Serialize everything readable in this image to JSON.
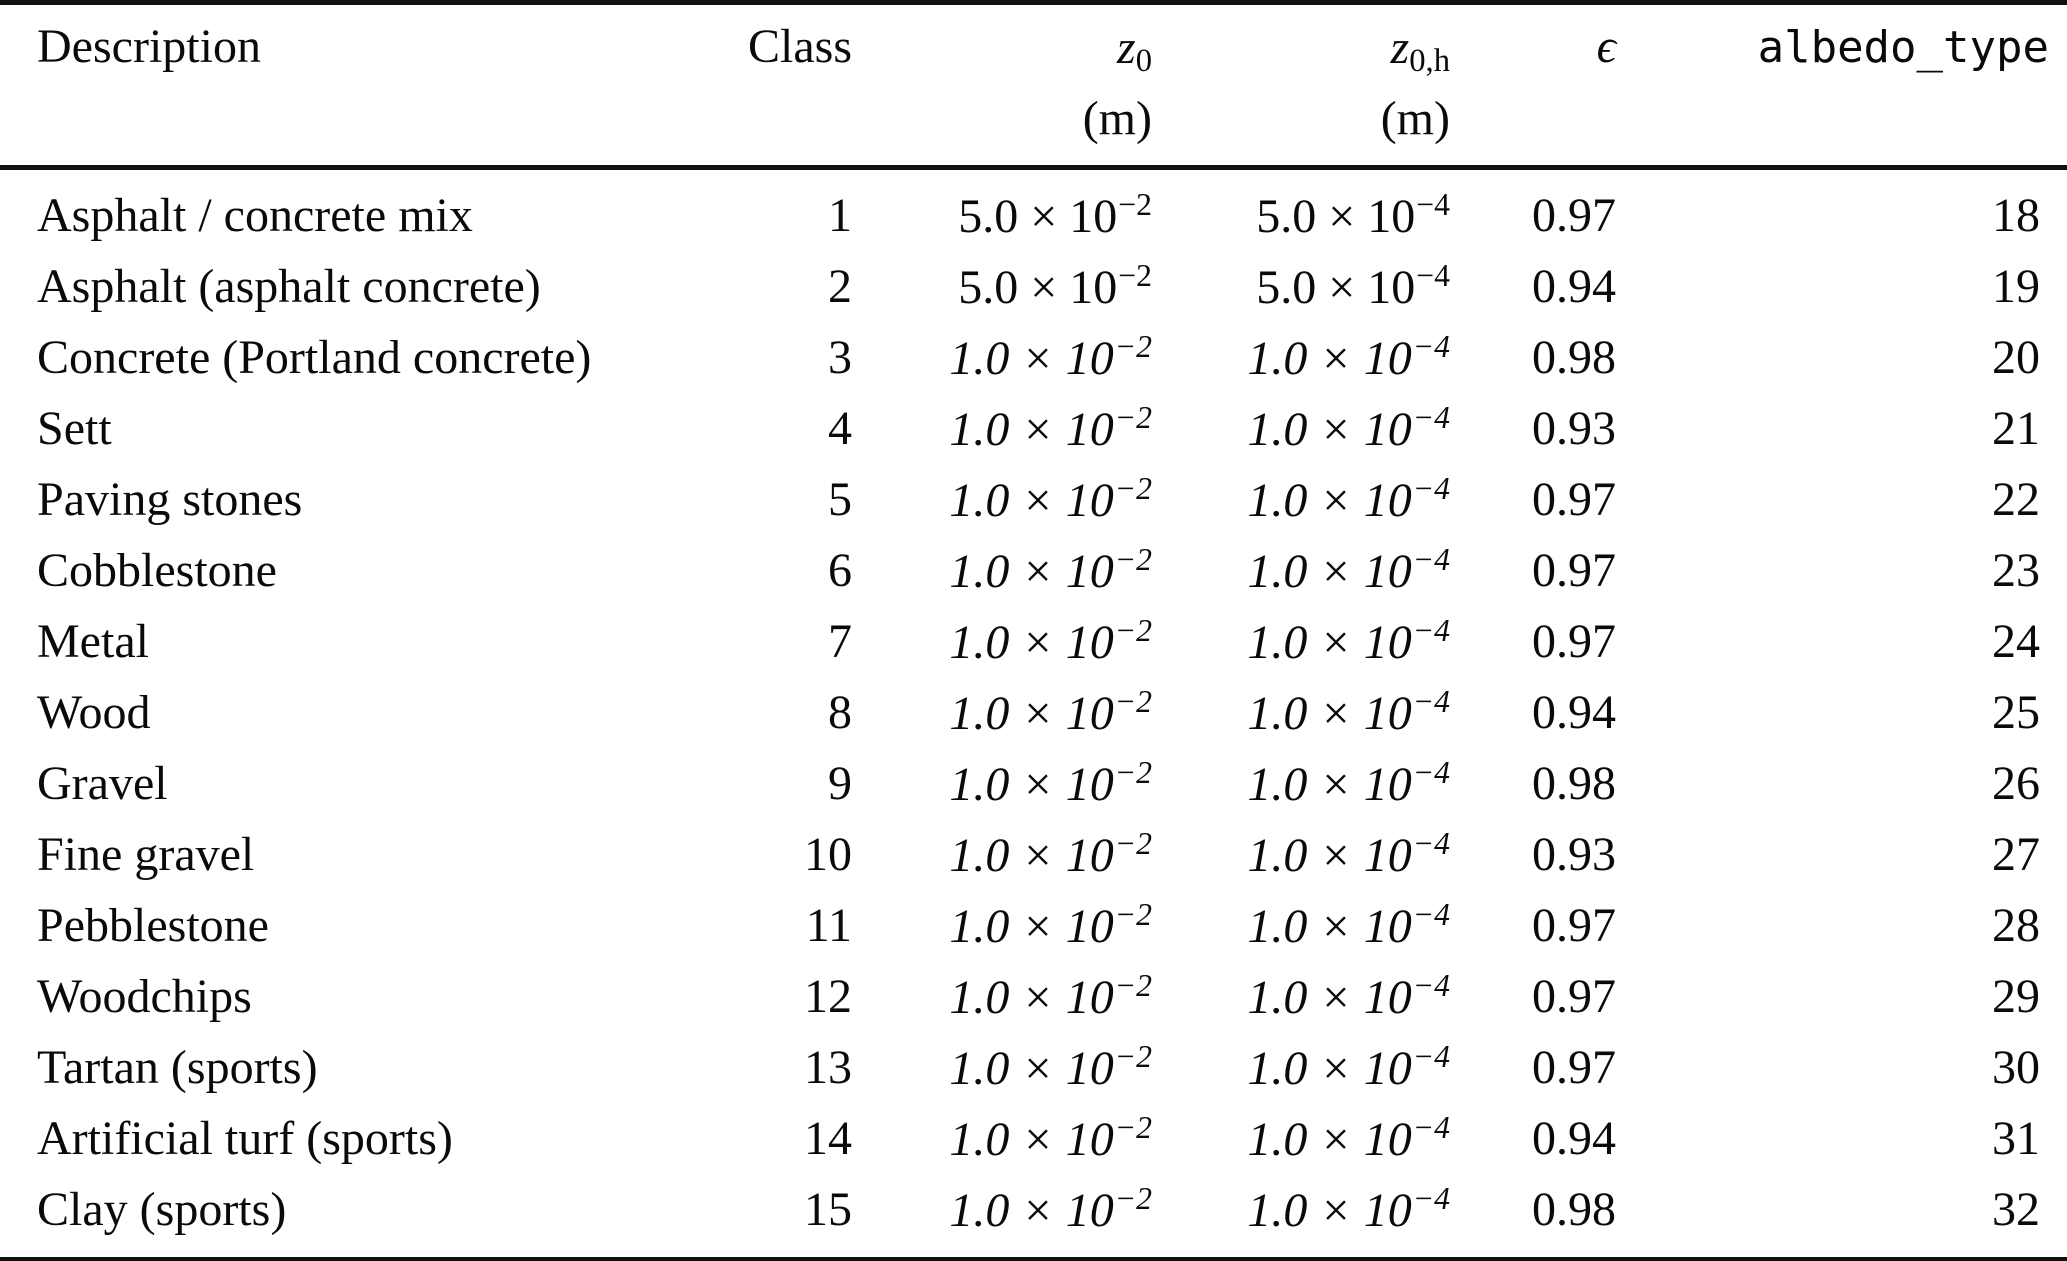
{
  "table": {
    "columns": [
      {
        "label": "Description"
      },
      {
        "label": "Class"
      },
      {
        "base": "z",
        "sub": "0",
        "unit": "(m)"
      },
      {
        "base": "z",
        "sub": "0,h",
        "unit": "(m)"
      },
      {
        "label": "ϵ"
      },
      {
        "label": "albedo_type"
      }
    ],
    "notation": {
      "times": "×",
      "power_base": "10"
    },
    "rows": [
      {
        "description": "Asphalt / concrete mix",
        "class": "1",
        "z0": {
          "m": "5.0",
          "e": "−2",
          "italic": false
        },
        "z0h": {
          "m": "5.0",
          "e": "−4",
          "italic": false
        },
        "eps": "0.97",
        "albedo": "18"
      },
      {
        "description": "Asphalt (asphalt concrete)",
        "class": "2",
        "z0": {
          "m": "5.0",
          "e": "−2",
          "italic": false
        },
        "z0h": {
          "m": "5.0",
          "e": "−4",
          "italic": false
        },
        "eps": "0.94",
        "albedo": "19"
      },
      {
        "description": "Concrete (Portland concrete)",
        "class": "3",
        "z0": {
          "m": "1.0",
          "e": "−2",
          "italic": true
        },
        "z0h": {
          "m": "1.0",
          "e": "−4",
          "italic": true
        },
        "eps": "0.98",
        "albedo": "20"
      },
      {
        "description": "Sett",
        "class": "4",
        "z0": {
          "m": "1.0",
          "e": "−2",
          "italic": true
        },
        "z0h": {
          "m": "1.0",
          "e": "−4",
          "italic": true
        },
        "eps": "0.93",
        "albedo": "21"
      },
      {
        "description": "Paving stones",
        "class": "5",
        "z0": {
          "m": "1.0",
          "e": "−2",
          "italic": true
        },
        "z0h": {
          "m": "1.0",
          "e": "−4",
          "italic": true
        },
        "eps": "0.97",
        "albedo": "22"
      },
      {
        "description": "Cobblestone",
        "class": "6",
        "z0": {
          "m": "1.0",
          "e": "−2",
          "italic": true
        },
        "z0h": {
          "m": "1.0",
          "e": "−4",
          "italic": true
        },
        "eps": "0.97",
        "albedo": "23"
      },
      {
        "description": "Metal",
        "class": "7",
        "z0": {
          "m": "1.0",
          "e": "−2",
          "italic": true
        },
        "z0h": {
          "m": "1.0",
          "e": "−4",
          "italic": true
        },
        "eps": "0.97",
        "albedo": "24"
      },
      {
        "description": "Wood",
        "class": "8",
        "z0": {
          "m": "1.0",
          "e": "−2",
          "italic": true
        },
        "z0h": {
          "m": "1.0",
          "e": "−4",
          "italic": true
        },
        "eps": "0.94",
        "albedo": "25"
      },
      {
        "description": "Gravel",
        "class": "9",
        "z0": {
          "m": "1.0",
          "e": "−2",
          "italic": true
        },
        "z0h": {
          "m": "1.0",
          "e": "−4",
          "italic": true
        },
        "eps": "0.98",
        "albedo": "26"
      },
      {
        "description": "Fine gravel",
        "class": "10",
        "z0": {
          "m": "1.0",
          "e": "−2",
          "italic": true
        },
        "z0h": {
          "m": "1.0",
          "e": "−4",
          "italic": true
        },
        "eps": "0.93",
        "albedo": "27"
      },
      {
        "description": "Pebblestone",
        "class": "11",
        "z0": {
          "m": "1.0",
          "e": "−2",
          "italic": true
        },
        "z0h": {
          "m": "1.0",
          "e": "−4",
          "italic": true
        },
        "eps": "0.97",
        "albedo": "28"
      },
      {
        "description": "Woodchips",
        "class": "12",
        "z0": {
          "m": "1.0",
          "e": "−2",
          "italic": true
        },
        "z0h": {
          "m": "1.0",
          "e": "−4",
          "italic": true
        },
        "eps": "0.97",
        "albedo": "29"
      },
      {
        "description": "Tartan (sports)",
        "class": "13",
        "z0": {
          "m": "1.0",
          "e": "−2",
          "italic": true
        },
        "z0h": {
          "m": "1.0",
          "e": "−4",
          "italic": true
        },
        "eps": "0.97",
        "albedo": "30"
      },
      {
        "description": "Artificial turf (sports)",
        "class": "14",
        "z0": {
          "m": "1.0",
          "e": "−2",
          "italic": true
        },
        "z0h": {
          "m": "1.0",
          "e": "−4",
          "italic": true
        },
        "eps": "0.94",
        "albedo": "31"
      },
      {
        "description": "Clay (sports)",
        "class": "15",
        "z0": {
          "m": "1.0",
          "e": "−2",
          "italic": true
        },
        "z0h": {
          "m": "1.0",
          "e": "−4",
          "italic": true
        },
        "eps": "0.98",
        "albedo": "32"
      }
    ]
  }
}
